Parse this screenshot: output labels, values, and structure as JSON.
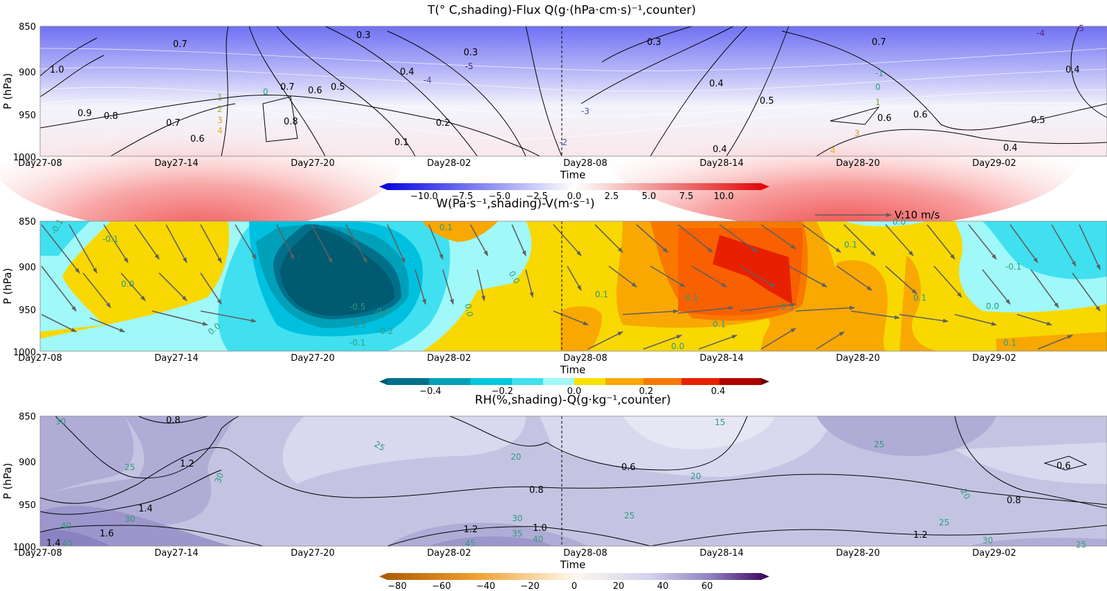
{
  "time_ticks": [
    "Day27-08",
    "Day27-14",
    "Day27-20",
    "Day28-02",
    "Day28-08",
    "Day28-14",
    "Day28-20",
    "Day29-02"
  ],
  "pressure_ticks": [
    "850",
    "900",
    "950",
    "1000"
  ],
  "xlabel": "Time",
  "ylabel": "P (hPa)",
  "chart_data": [
    {
      "type": "heatmap",
      "title": "T(° C,shading)-Flux Q(g·(hPa·cm·s)⁻¹,counter)",
      "xlabel": "Time",
      "ylabel": "P (hPa)",
      "ylim": [
        1000,
        850
      ],
      "yticks": [
        850,
        900,
        950,
        1000
      ],
      "x": [
        "Day27-08",
        "Day27-14",
        "Day27-20",
        "Day28-02",
        "Day28-08",
        "Day28-14",
        "Day28-20",
        "Day29-02"
      ],
      "shading_variable": "T",
      "colorbar_ticks": [
        "−10.0",
        "−7.5",
        "−5.0",
        "−2.5",
        "0.0",
        "2.5",
        "5.0",
        "7.5",
        "10.0"
      ],
      "colorbar_range": [
        -11,
        11
      ],
      "colormap": [
        "#0000e0",
        "#ffffff",
        "#e00000"
      ],
      "temperature_contour_labels": [
        "-5",
        "-4",
        "-3",
        "-2",
        "-1",
        "0",
        "1",
        "2",
        "3",
        "4"
      ],
      "flux_contour_labels": [
        "0.1",
        "0.2",
        "0.3",
        "0.4",
        "0.5",
        "0.6",
        "0.7",
        "0.8",
        "0.9",
        "1.0"
      ],
      "vertical_marker": "Day28-08"
    },
    {
      "type": "heatmap",
      "title": "W(Pa·s⁻¹,shading)-V(m·s⁻¹)",
      "xlabel": "Time",
      "ylabel": "P (hPa)",
      "ylim": [
        1000,
        850
      ],
      "yticks": [
        850,
        900,
        950,
        1000
      ],
      "x": [
        "Day27-08",
        "Day27-14",
        "Day27-20",
        "Day28-02",
        "Day28-08",
        "Day28-14",
        "Day28-20",
        "Day29-02"
      ],
      "shading_variable": "W",
      "colorbar_ticks": [
        "−0.4",
        "−0.2",
        "0.0",
        "0.2",
        "0.4"
      ],
      "colorbar_range": [
        -0.55,
        0.55
      ],
      "colormap": [
        "#005a70",
        "#00a8c8",
        "#40e0f0",
        "#a0f8f8",
        "#f8e000",
        "#f8a800",
        "#f86000",
        "#e82000",
        "#600000"
      ],
      "contour_labels": [
        "-0.5",
        "-0.4",
        "-0.3",
        "-0.2",
        "-0.1",
        "0.0",
        "0.1",
        "0.2",
        "0.3"
      ],
      "vector_reference": "V:10 m/s",
      "vertical_marker": "Day28-08"
    },
    {
      "type": "heatmap",
      "title": "RH(%,shading)-Q(g·kg⁻¹,counter)",
      "xlabel": "Time",
      "ylabel": "P (hPa)",
      "ylim": [
        1000,
        850
      ],
      "yticks": [
        850,
        900,
        950,
        1000
      ],
      "x": [
        "Day27-08",
        "Day27-14",
        "Day27-20",
        "Day28-02",
        "Day28-08",
        "Day28-14",
        "Day28-20",
        "Day29-02"
      ],
      "shading_variable": "RH",
      "colorbar_ticks": [
        "−80",
        "−60",
        "−40",
        "−20",
        "0",
        "20",
        "40",
        "60"
      ],
      "colorbar_range": [
        -90,
        80
      ],
      "colormap": [
        "#a85800",
        "#f0a030",
        "#fff8ee",
        "#d8d8f0",
        "#9080c0",
        "#3a0058"
      ],
      "rh_contour_labels": [
        "15",
        "20",
        "25",
        "30",
        "35",
        "40",
        "45"
      ],
      "q_contour_labels": [
        "0.6",
        "0.8",
        "1.0",
        "1.2",
        "1.4",
        "1.6"
      ],
      "vertical_marker": "Day28-08"
    }
  ]
}
